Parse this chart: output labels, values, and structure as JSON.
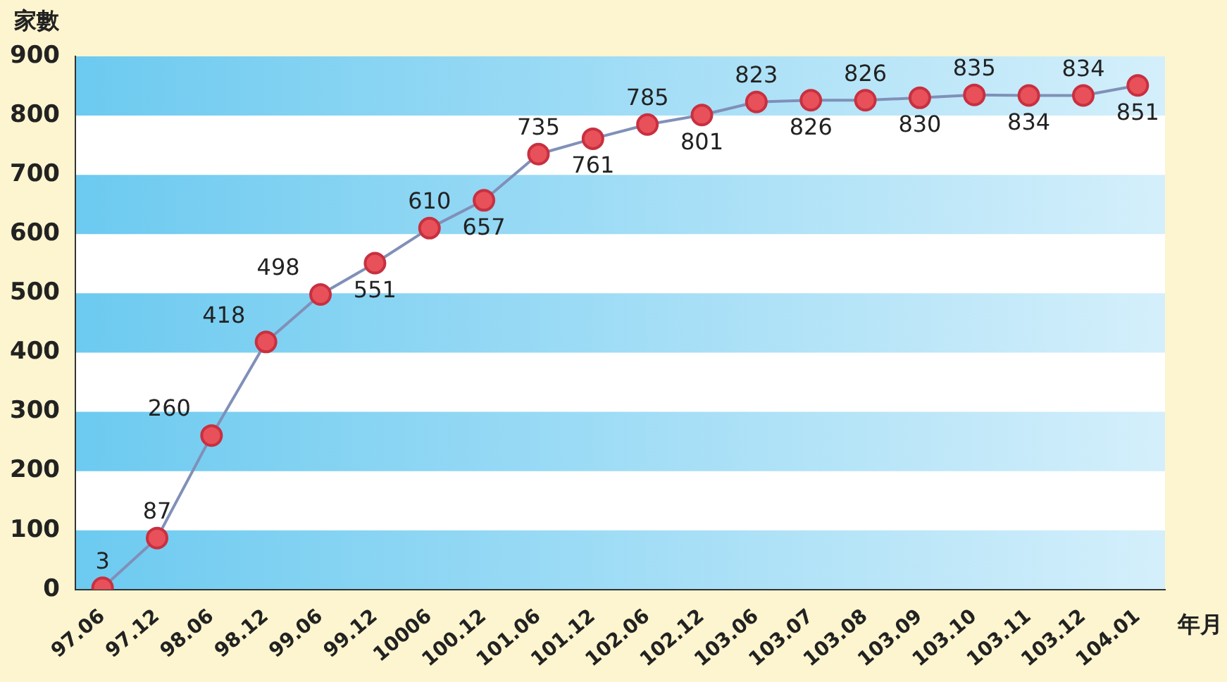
{
  "chart_data": {
    "type": "line",
    "xlabel": "年月",
    "ylabel": "家數",
    "categories": [
      "97.06",
      "97.12",
      "98.06",
      "98.12",
      "99.06",
      "99.12",
      "10006",
      "100.12",
      "101.06",
      "101.12",
      "102.06",
      "102.12",
      "103.06",
      "103.07",
      "103.08",
      "103.09",
      "103.10",
      "103.11",
      "103.12",
      "104.01"
    ],
    "series": [
      {
        "color": "#8090b8",
        "values": [
          3,
          87,
          260,
          418,
          498,
          551,
          610,
          657,
          735,
          761,
          785,
          801,
          823,
          826,
          826,
          830,
          835,
          834,
          834,
          851
        ]
      }
    ],
    "ylim": [
      0,
      900
    ],
    "yticks": [
      0,
      100,
      200,
      300,
      400,
      500,
      600,
      700,
      800,
      900
    ],
    "bands": [
      {
        "axis": "y",
        "from": 0,
        "to": 100,
        "color": "#6ccaf0"
      },
      {
        "axis": "y",
        "from": 200,
        "to": 300,
        "color": "#6ccaf0"
      },
      {
        "axis": "y",
        "from": 400,
        "to": 500,
        "color": "#6ccaf0"
      },
      {
        "axis": "y",
        "from": 600,
        "to": 700,
        "color": "#6ccaf0"
      },
      {
        "axis": "y",
        "from": 800,
        "to": 900,
        "color": "#6ccaf0"
      }
    ],
    "data_labels": true,
    "marker": "circle",
    "line_style": "solid",
    "legend": false
  }
}
